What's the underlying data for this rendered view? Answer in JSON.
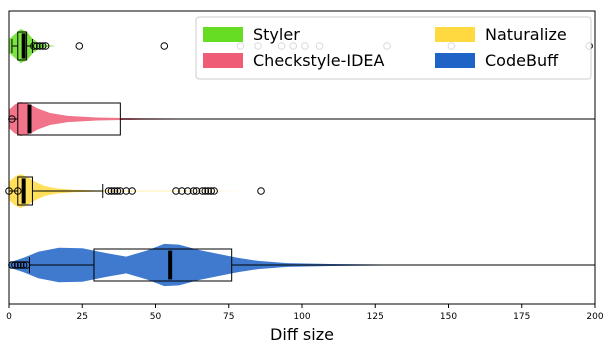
{
  "chart_data": {
    "type": "violin-box",
    "orientation": "horizontal",
    "xlabel": "Diff size",
    "ylabel": "",
    "xlim": [
      0,
      200
    ],
    "x_ticks": [
      0,
      25,
      50,
      75,
      100,
      125,
      150,
      175,
      200
    ],
    "grid": false,
    "legend_position": "top-right",
    "legend": [
      {
        "name": "Styler",
        "color": "#66dd22"
      },
      {
        "name": "Checkstyle-IDEA",
        "color": "#ee5c76"
      },
      {
        "name": "Naturalize",
        "color": "#ffd93f"
      },
      {
        "name": "CodeBuff",
        "color": "#1f63c6"
      }
    ],
    "series": [
      {
        "name": "Styler",
        "color": "#66dd22",
        "box": {
          "q1": 3,
          "median": 5,
          "q3": 6,
          "whisker_low": 1,
          "whisker_high": 8
        },
        "outliers": [
          8.5,
          9.5,
          10.5,
          11.5,
          12.5,
          24,
          53,
          79,
          85,
          93,
          97,
          101,
          106,
          129,
          151,
          198
        ],
        "density": [
          [
            0,
            0.4
          ],
          [
            2,
            0.7
          ],
          [
            4,
            1.0
          ],
          [
            6,
            0.85
          ],
          [
            8,
            0.45
          ],
          [
            10,
            0.18
          ],
          [
            13,
            0.05
          ],
          [
            16,
            0
          ]
        ]
      },
      {
        "name": "Checkstyle-IDEA",
        "color": "#ee5c76",
        "box": {
          "q1": 3,
          "median": 7,
          "q3": 38,
          "whisker_low": 0,
          "whisker_high": 200
        },
        "outliers": [
          1
        ],
        "density": [
          [
            0,
            0.55
          ],
          [
            2,
            0.85
          ],
          [
            4,
            1.0
          ],
          [
            7,
            0.88
          ],
          [
            10,
            0.6
          ],
          [
            14,
            0.35
          ],
          [
            20,
            0.18
          ],
          [
            30,
            0.09
          ],
          [
            45,
            0.04
          ],
          [
            70,
            0.015
          ],
          [
            90,
            0
          ]
        ]
      },
      {
        "name": "Naturalize",
        "color": "#ffd93f",
        "box": {
          "q1": 3,
          "median": 5,
          "q3": 8,
          "whisker_low": 0,
          "whisker_high": 32
        },
        "outliers": [
          0,
          3,
          34,
          35,
          36,
          37,
          38,
          40,
          42,
          57,
          59,
          61,
          63,
          64,
          66,
          67,
          68,
          69,
          70,
          86
        ],
        "density": [
          [
            0,
            0.55
          ],
          [
            2,
            0.85
          ],
          [
            4,
            1.0
          ],
          [
            6,
            0.85
          ],
          [
            9,
            0.55
          ],
          [
            12,
            0.3
          ],
          [
            16,
            0.15
          ],
          [
            22,
            0.07
          ],
          [
            30,
            0.035
          ],
          [
            45,
            0.015
          ],
          [
            60,
            0.01
          ],
          [
            72,
            0.006
          ],
          [
            80,
            0
          ]
        ]
      },
      {
        "name": "CodeBuff",
        "color": "#1f63c6",
        "box": {
          "q1": 29,
          "median": 55,
          "q3": 76,
          "whisker_low": 7,
          "whisker_high": 200
        },
        "outliers": [
          1,
          2,
          3,
          4,
          5,
          6
        ],
        "density": [
          [
            0,
            0.1
          ],
          [
            5,
            0.3
          ],
          [
            10,
            0.55
          ],
          [
            17,
            0.72
          ],
          [
            25,
            0.7
          ],
          [
            33,
            0.5
          ],
          [
            40,
            0.35
          ],
          [
            47,
            0.6
          ],
          [
            53,
            0.88
          ],
          [
            58,
            0.85
          ],
          [
            65,
            0.62
          ],
          [
            72,
            0.45
          ],
          [
            78,
            0.3
          ],
          [
            85,
            0.17
          ],
          [
            95,
            0.08
          ],
          [
            110,
            0.04
          ],
          [
            130,
            0.015
          ],
          [
            148,
            0.005
          ],
          [
            150,
            0
          ]
        ]
      }
    ]
  }
}
